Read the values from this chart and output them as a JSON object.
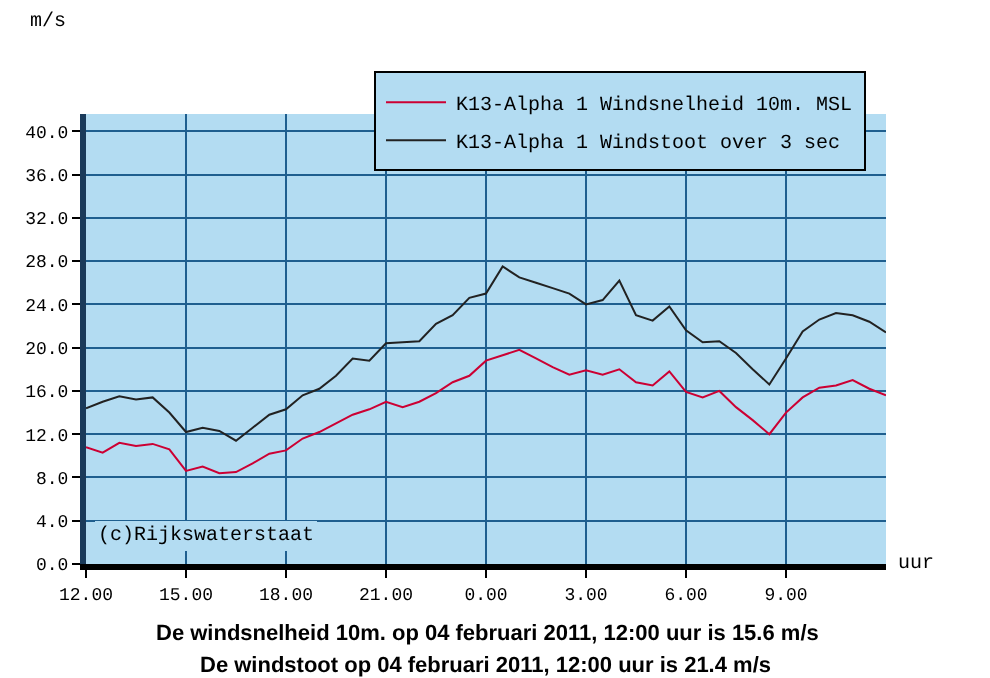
{
  "chart_data": {
    "type": "line",
    "ylabel": "m/s",
    "xlabel": "uur",
    "x": [
      "2011-02-03T12:00",
      "2011-02-03T12:30",
      "2011-02-03T13:00",
      "2011-02-03T13:30",
      "2011-02-03T14:00",
      "2011-02-03T14:30",
      "2011-02-03T15:00",
      "2011-02-03T15:30",
      "2011-02-03T16:00",
      "2011-02-03T16:30",
      "2011-02-03T17:00",
      "2011-02-03T17:30",
      "2011-02-03T18:00",
      "2011-02-03T18:30",
      "2011-02-03T19:00",
      "2011-02-03T19:30",
      "2011-02-03T20:00",
      "2011-02-03T20:30",
      "2011-02-03T21:00",
      "2011-02-03T21:30",
      "2011-02-03T22:00",
      "2011-02-03T22:30",
      "2011-02-03T23:00",
      "2011-02-03T23:30",
      "2011-02-04T00:00",
      "2011-02-04T00:30",
      "2011-02-04T01:00",
      "2011-02-04T01:30",
      "2011-02-04T02:00",
      "2011-02-04T02:30",
      "2011-02-04T03:00",
      "2011-02-04T03:30",
      "2011-02-04T04:00",
      "2011-02-04T04:30",
      "2011-02-04T05:00",
      "2011-02-04T05:30",
      "2011-02-04T06:00",
      "2011-02-04T06:30",
      "2011-02-04T07:00",
      "2011-02-04T07:30",
      "2011-02-04T08:00",
      "2011-02-04T08:30",
      "2011-02-04T09:00",
      "2011-02-04T09:30",
      "2011-02-04T10:00",
      "2011-02-04T10:30",
      "2011-02-04T11:00",
      "2011-02-04T11:30",
      "2011-02-04T12:00"
    ],
    "series": [
      {
        "name": "K13-Alpha 1 Windsnelheid 10m. MSL",
        "color": "#cc0033",
        "values": [
          10.8,
          10.3,
          11.2,
          10.9,
          11.1,
          10.6,
          8.6,
          9.0,
          8.4,
          8.5,
          9.3,
          10.2,
          10.5,
          11.6,
          12.2,
          13.0,
          13.8,
          14.3,
          15.0,
          14.5,
          15.0,
          15.8,
          16.8,
          17.4,
          18.8,
          19.3,
          19.8,
          19.0,
          18.2,
          17.5,
          17.9,
          17.5,
          18.0,
          16.8,
          16.5,
          17.8,
          15.9,
          15.4,
          16.0,
          14.5,
          13.3,
          12.0,
          14.0,
          15.4,
          16.3,
          16.5,
          17.0,
          16.2,
          15.6
        ]
      },
      {
        "name": "K13-Alpha 1 Windstoot over 3 sec",
        "color": "#222222",
        "values": [
          14.4,
          15.0,
          15.5,
          15.2,
          15.4,
          14.0,
          12.2,
          12.6,
          12.3,
          11.4,
          12.6,
          13.8,
          14.3,
          15.6,
          16.2,
          17.4,
          19.0,
          18.8,
          20.4,
          20.5,
          20.6,
          22.2,
          23.0,
          24.6,
          25.0,
          27.5,
          26.5,
          26.0,
          25.5,
          25.0,
          24.0,
          24.4,
          26.2,
          23.0,
          22.5,
          23.8,
          21.6,
          20.5,
          20.6,
          19.5,
          18.0,
          16.6,
          19.0,
          21.5,
          22.6,
          23.2,
          23.0,
          22.4,
          21.4
        ]
      }
    ],
    "xlim": [
      "2011-02-03T12:00",
      "2011-02-04T12:00"
    ],
    "xticks": [
      {
        "value": "2011-02-03T12:00",
        "label": "12.00"
      },
      {
        "value": "2011-02-03T15:00",
        "label": "15.00"
      },
      {
        "value": "2011-02-03T18:00",
        "label": "18.00"
      },
      {
        "value": "2011-02-03T21:00",
        "label": "21.00"
      },
      {
        "value": "2011-02-04T00:00",
        "label": "0.00"
      },
      {
        "value": "2011-02-04T03:00",
        "label": "3.00"
      },
      {
        "value": "2011-02-04T06:00",
        "label": "6.00"
      },
      {
        "value": "2011-02-04T09:00",
        "label": "9.00"
      }
    ],
    "ylim": [
      0,
      41.6
    ],
    "yticks": [
      {
        "value": 0,
        "label": "0.0"
      },
      {
        "value": 4,
        "label": "4.0"
      },
      {
        "value": 8,
        "label": "8.0"
      },
      {
        "value": 12,
        "label": "12.0"
      },
      {
        "value": 16,
        "label": "16.0"
      },
      {
        "value": 20,
        "label": "20.0"
      },
      {
        "value": 24,
        "label": "24.0"
      },
      {
        "value": 28,
        "label": "28.0"
      },
      {
        "value": 32,
        "label": "32.0"
      },
      {
        "value": 36,
        "label": "36.0"
      },
      {
        "value": 40,
        "label": "40.0"
      }
    ],
    "grid": true,
    "legend": "top right",
    "marker": "none",
    "line_style": "solid",
    "annotations": [
      "(c)Rijkswaterstaat",
      "De windsnelheid 10m. op 04 februari 2011, 12:00 uur is 15.6 m/s",
      "De windstoot op 04 februari 2011, 12:00 uur is 21.4 m/s"
    ]
  }
}
